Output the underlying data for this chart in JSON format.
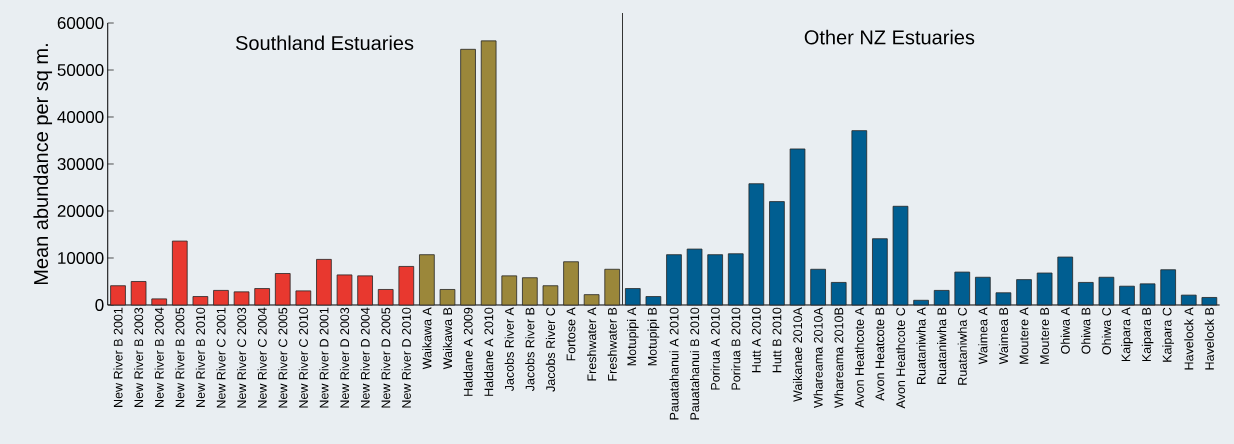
{
  "chart_data": {
    "type": "bar",
    "ylabel": "Mean abundance per  sq m.",
    "categories": [
      "New River B 2001",
      "New River B 2003",
      "New River B 2004",
      "New River B 2005",
      "New River B 2010",
      "New River C 2001",
      "New River C 2003",
      "New River C 2004",
      "New River C 2005",
      "New River C 2010",
      "New River D 2001",
      "New River D 2003",
      "New River D 2004",
      "New River D 2005",
      "New River D 2010",
      "Waikawa A",
      "Waikawa B",
      "Haldane A 2009",
      "Haldane A 2010",
      "Jacobs River A",
      "Jacobs River B",
      "Jacobs River C",
      "Fortose A",
      "Freshwater A",
      "Freshwater B",
      "Motupipi A",
      "Motupipi B",
      "Pauatahanui A 2010",
      "Pauatahanui B 2010",
      "Porirua A 2010",
      "Porirua B 2010",
      "Hutt A 2010",
      "Hutt B 2010",
      "Waikanae 2010A",
      "Whareama 2010A",
      "Whareama 2010B",
      "Avon Heathcote A",
      "Avon Heatcote B",
      "Avon Heathcote C",
      "Ruataniwha A",
      "Ruataniwha B",
      "Ruataniwha C",
      "Waimea A",
      "Waimea B",
      "Moutere A",
      "Moutere B",
      "Ohiwa A",
      "Ohiwa B",
      "Ohiwa C",
      "Kaipara A",
      "Kaipara B",
      "Kaipara C",
      "Havelock A",
      "Havelock B"
    ],
    "values": [
      4100,
      5000,
      1300,
      13600,
      1800,
      3100,
      2800,
      3500,
      6700,
      3000,
      9700,
      6400,
      6200,
      3300,
      8200,
      10700,
      3300,
      54400,
      56200,
      6200,
      5800,
      4100,
      9200,
      2200,
      7600,
      3500,
      1800,
      10700,
      11900,
      10700,
      10900,
      25800,
      22000,
      33200,
      7600,
      4800,
      37100,
      14100,
      21000,
      1000,
      3100,
      7000,
      5900,
      2600,
      5400,
      6800,
      10200,
      4800,
      5900,
      4000,
      4500,
      7500,
      2100,
      1600
    ],
    "colors": [
      "#e8382f",
      "#e8382f",
      "#e8382f",
      "#e8382f",
      "#e8382f",
      "#e8382f",
      "#e8382f",
      "#e8382f",
      "#e8382f",
      "#e8382f",
      "#e8382f",
      "#e8382f",
      "#e8382f",
      "#e8382f",
      "#e8382f",
      "#9b873a",
      "#9b873a",
      "#9b873a",
      "#9b873a",
      "#9b873a",
      "#9b873a",
      "#9b873a",
      "#9b873a",
      "#9b873a",
      "#9b873a",
      "#005e91",
      "#005e91",
      "#005e91",
      "#005e91",
      "#005e91",
      "#005e91",
      "#005e91",
      "#005e91",
      "#005e91",
      "#005e91",
      "#005e91",
      "#005e91",
      "#005e91",
      "#005e91",
      "#005e91",
      "#005e91",
      "#005e91",
      "#005e91",
      "#005e91",
      "#005e91",
      "#005e91",
      "#005e91",
      "#005e91",
      "#005e91",
      "#005e91",
      "#005e91",
      "#005e91",
      "#005e91",
      "#005e91"
    ],
    "ylim": [
      0,
      60000
    ],
    "yticks": [
      0,
      10000,
      20000,
      30000,
      40000,
      50000,
      60000
    ],
    "annotations": [
      "Southland Estuaries",
      "Other NZ Estuaries"
    ],
    "grid": false
  }
}
